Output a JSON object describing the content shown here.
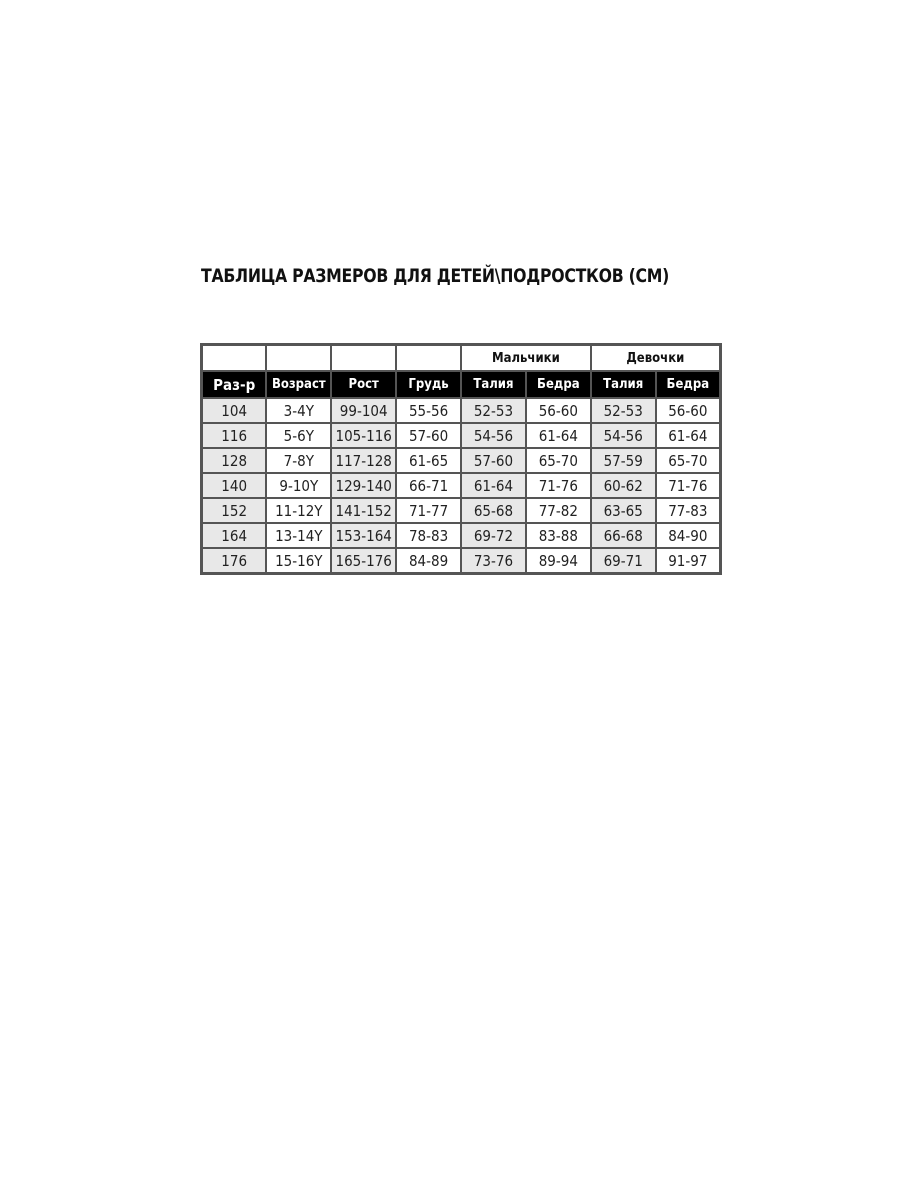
{
  "title": "ТАБЛИЦА РАЗМЕРОВ ДЛЯ ДЕТЕЙ\\ПОДРОСТКОВ (СМ)",
  "groups": [
    "",
    "",
    "",
    "",
    "Мальчики",
    "Девочки"
  ],
  "headers": [
    "Раз-р",
    "Возраст",
    "Рост",
    "Грудь",
    "Талия",
    "Бедра",
    "Талия",
    "Бедра"
  ],
  "rows": [
    [
      "104",
      "3-4Y",
      "99-104",
      "55-56",
      "52-53",
      "56-60",
      "52-53",
      "56-60"
    ],
    [
      "116",
      "5-6Y",
      "105-116",
      "57-60",
      "54-56",
      "61-64",
      "54-56",
      "61-64"
    ],
    [
      "128",
      "7-8Y",
      "117-128",
      "61-65",
      "57-60",
      "65-70",
      "57-59",
      "65-70"
    ],
    [
      "140",
      "9-10Y",
      "129-140",
      "66-71",
      "61-64",
      "71-76",
      "60-62",
      "71-76"
    ],
    [
      "152",
      "11-12Y",
      "141-152",
      "71-77",
      "65-68",
      "77-82",
      "63-65",
      "77-83"
    ],
    [
      "164",
      "13-14Y",
      "153-164",
      "78-83",
      "69-72",
      "83-88",
      "66-68",
      "84-90"
    ],
    [
      "176",
      "15-16Y",
      "165-176",
      "84-89",
      "73-76",
      "89-94",
      "69-71",
      "91-97"
    ]
  ]
}
